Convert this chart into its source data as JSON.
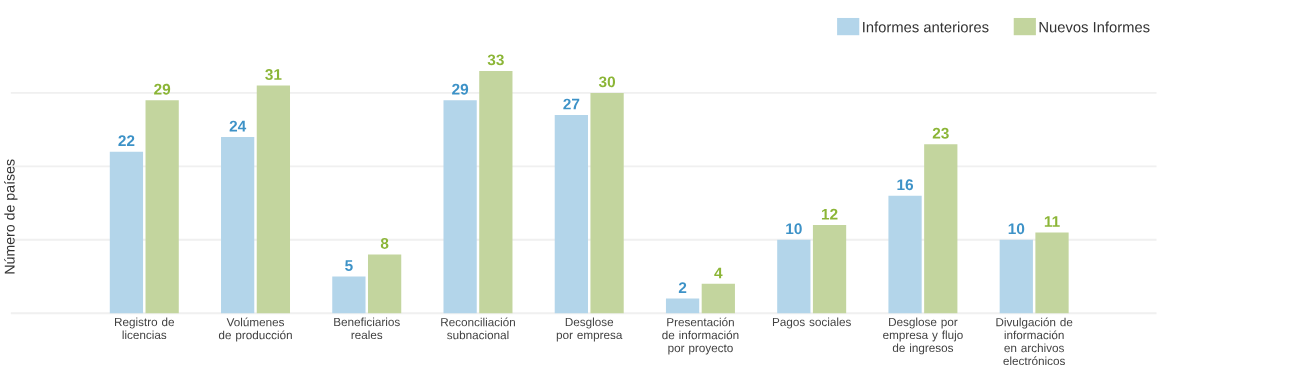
{
  "chart_data": {
    "type": "bar",
    "ylabel": "Número de países",
    "categories": [
      "Registro de licencias",
      "Volúmenes de producción",
      "Beneficiarios reales",
      "Reconciliación subnacional",
      "Desglose por empresa",
      "Presentación de información por proyecto",
      "Pagos sociales",
      "Desglose por empresa y flujo de ingresos",
      "Divulgación de información en archivos electrónicos"
    ],
    "series": [
      {
        "name": "Informes anteriores",
        "color": "#b3d5ea",
        "values": [
          22,
          24,
          5,
          29,
          27,
          2,
          10,
          16,
          10
        ]
      },
      {
        "name": "Nuevos Informes",
        "color": "#c3d59e",
        "values": [
          29,
          31,
          8,
          33,
          30,
          4,
          12,
          23,
          11
        ]
      }
    ],
    "yticks": [
      {
        "value": 0,
        "label": null
      },
      {
        "value": 10,
        "label": null
      },
      {
        "value": 20,
        "label": null
      },
      {
        "value": 30,
        "label": null
      }
    ],
    "grid": "y",
    "legend": "top right",
    "data_labels": true,
    "tick_labels": "x"
  }
}
